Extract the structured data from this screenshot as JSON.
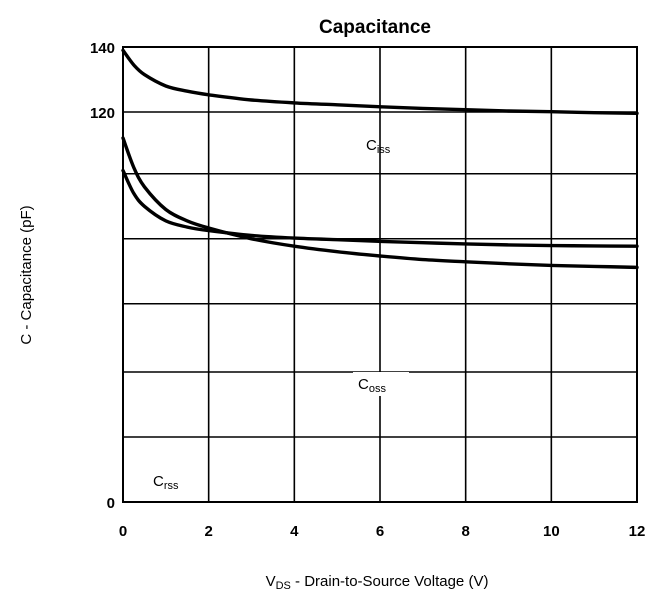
{
  "chart_data": {
    "type": "line",
    "title": "Capacitance",
    "xlabel": {
      "main": "V",
      "sub": "DS",
      "rest": " -  Drain-to-Source Voltage (V)"
    },
    "ylabel": "C  -  Capacitance (pF)",
    "xlim": [
      0,
      12
    ],
    "xticks": [
      0,
      2,
      4,
      6,
      8,
      10,
      12
    ],
    "x_tick_labels": [
      "0",
      "2",
      "4",
      "6",
      "8",
      "10",
      "12"
    ],
    "ylim": [
      0,
      140
    ],
    "y_tick_labels": [
      {
        "value": 140,
        "label": "140"
      },
      {
        "value": 120,
        "label": "120"
      },
      {
        "value": 0,
        "label": "0"
      }
    ],
    "y_gridlines": [
      140,
      120,
      101,
      81,
      61,
      40,
      20
    ],
    "grid": true,
    "series": [
      {
        "name": "C",
        "sub": "iss",
        "x": [
          0,
          0.25,
          0.5,
          1,
          1.5,
          2,
          3,
          4,
          5,
          6,
          7,
          8,
          9,
          10,
          11,
          12
        ],
        "y": [
          139,
          134.5,
          131.5,
          128,
          126.4,
          125.3,
          123.7,
          122.8,
          122.2,
          121.6,
          121.1,
          120.7,
          120.3,
          120.1,
          119.8,
          119.6
        ]
      },
      {
        "name": "C",
        "sub": "oss",
        "x": [
          0,
          0.25,
          0.5,
          1,
          1.5,
          2,
          3,
          4,
          5,
          6,
          7,
          8,
          9,
          10,
          11,
          12
        ],
        "y": [
          112,
          103,
          97,
          90,
          86.5,
          84.3,
          81,
          78.7,
          77,
          75.7,
          74.6,
          73.9,
          73.3,
          72.8,
          72.5,
          72.2
        ]
      },
      {
        "name": "C",
        "sub": "rss",
        "x": [
          0,
          0.25,
          0.5,
          1,
          1.5,
          2,
          3,
          4,
          5,
          6,
          7,
          8,
          9,
          10,
          11,
          12
        ],
        "y": [
          102,
          95,
          91,
          86.5,
          84.6,
          83.5,
          82,
          81.2,
          80.7,
          80.2,
          79.8,
          79.4,
          79.1,
          78.9,
          78.8,
          78.7
        ]
      }
    ]
  }
}
